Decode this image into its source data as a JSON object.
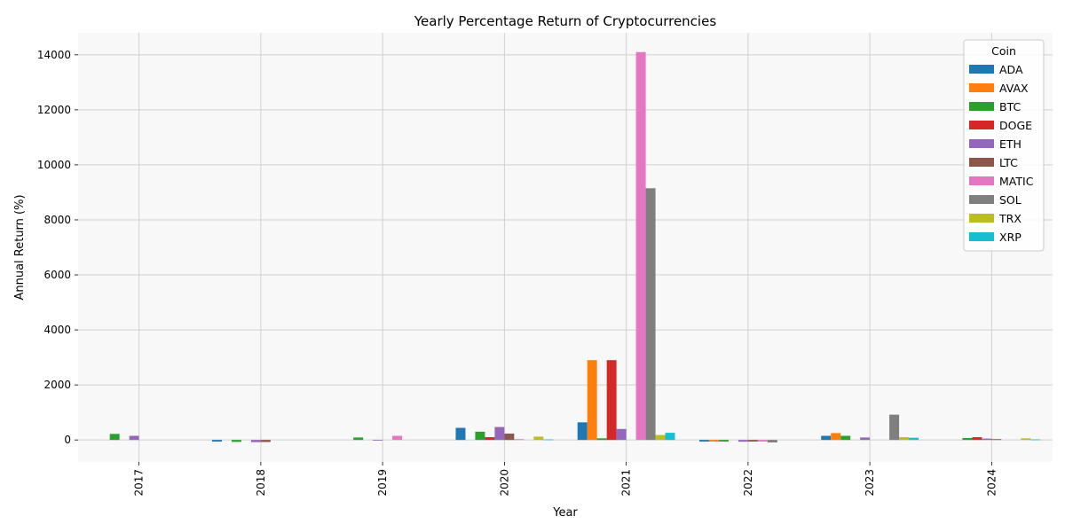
{
  "chart_data": {
    "type": "bar",
    "title": "Yearly Percentage Return of Cryptocurrencies",
    "xlabel": "Year",
    "ylabel": "Annual Return (%)",
    "categories": [
      "2017",
      "2018",
      "2019",
      "2020",
      "2021",
      "2022",
      "2023",
      "2024"
    ],
    "ylim": [
      -800,
      14800
    ],
    "yticks": [
      0,
      2000,
      4000,
      6000,
      8000,
      10000,
      12000,
      14000
    ],
    "grid": true,
    "legend_title": "Coin",
    "legend_position": "top-right",
    "series": [
      {
        "name": "ADA",
        "color": "#1f77b4",
        "values": [
          null,
          -60,
          null,
          440,
          640,
          -60,
          150,
          null
        ]
      },
      {
        "name": "AVAX",
        "color": "#ff7f0e",
        "values": [
          null,
          null,
          null,
          null,
          2900,
          -60,
          250,
          null
        ]
      },
      {
        "name": "BTC",
        "color": "#2ca02c",
        "values": [
          220,
          -70,
          90,
          300,
          60,
          -60,
          150,
          70
        ]
      },
      {
        "name": "DOGE",
        "color": "#d62728",
        "values": [
          null,
          null,
          null,
          100,
          2900,
          null,
          null,
          100
        ]
      },
      {
        "name": "ETH",
        "color": "#9467bd",
        "values": [
          150,
          -80,
          -5,
          470,
          400,
          -65,
          90,
          50
        ]
      },
      {
        "name": "LTC",
        "color": "#8c564b",
        "values": [
          null,
          -75,
          null,
          230,
          null,
          -60,
          null,
          30
        ]
      },
      {
        "name": "MATIC",
        "color": "#e377c2",
        "values": [
          null,
          null,
          150,
          30,
          14100,
          -60,
          null,
          null
        ]
      },
      {
        "name": "SOL",
        "color": "#7f7f7f",
        "values": [
          null,
          null,
          null,
          null,
          9150,
          -90,
          920,
          null
        ]
      },
      {
        "name": "TRX",
        "color": "#bcbd22",
        "values": [
          null,
          null,
          null,
          120,
          180,
          null,
          100,
          60
        ]
      },
      {
        "name": "XRP",
        "color": "#17becf",
        "values": [
          null,
          null,
          null,
          20,
          260,
          null,
          80,
          20
        ]
      }
    ]
  }
}
